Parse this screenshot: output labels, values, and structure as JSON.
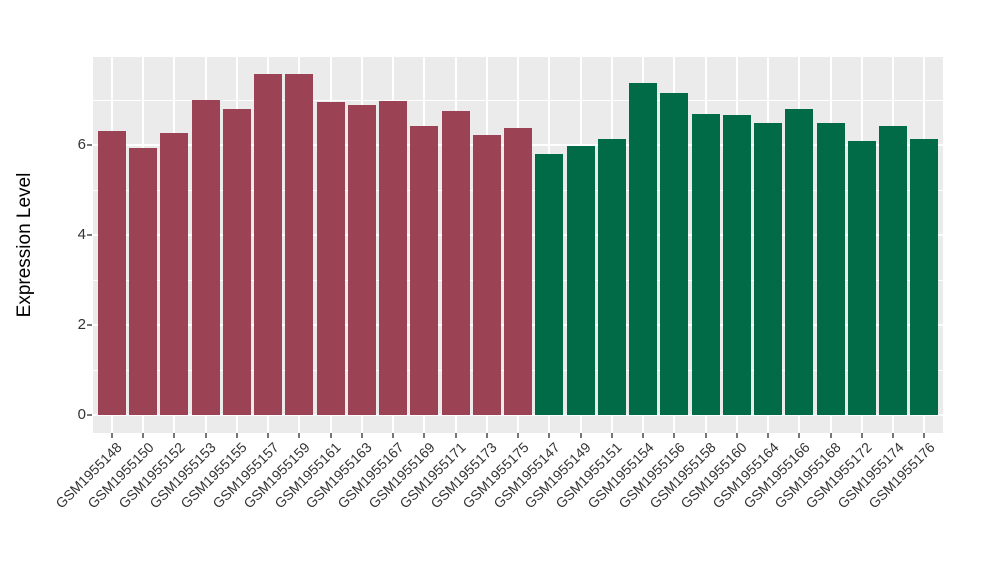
{
  "chart_data": {
    "type": "bar",
    "title": "",
    "xlabel": "",
    "ylabel": "Expression Level",
    "ylim": [
      0,
      7.96
    ],
    "yticks": [
      0,
      2,
      4,
      6
    ],
    "ytick_labels": [
      "0",
      "2",
      "4",
      "6"
    ],
    "minor_yticks": [
      1,
      3,
      5,
      7
    ],
    "grid": "major and minor white gridlines on gray panel",
    "legend_position": "none",
    "panel_background": "#EBEBEB",
    "gridline_color": "#FFFFFF",
    "axis_text_color": "#333333",
    "categories": [
      "GSM1955148",
      "GSM1955150",
      "GSM1955152",
      "GSM1955153",
      "GSM1955155",
      "GSM1955157",
      "GSM1955159",
      "GSM1955161",
      "GSM1955163",
      "GSM1955167",
      "GSM1955169",
      "GSM1955171",
      "GSM1955173",
      "GSM1955175",
      "GSM1955147",
      "GSM1955149",
      "GSM1955151",
      "GSM1955154",
      "GSM1955156",
      "GSM1955158",
      "GSM1955160",
      "GSM1955164",
      "GSM1955166",
      "GSM1955168",
      "GSM1955172",
      "GSM1955174",
      "GSM1955176"
    ],
    "values": [
      6.31,
      5.93,
      6.27,
      7.01,
      6.79,
      7.58,
      7.58,
      6.96,
      6.9,
      6.98,
      6.42,
      6.76,
      6.22,
      6.38,
      5.8,
      5.98,
      6.13,
      7.37,
      7.16,
      6.7,
      6.66,
      6.48,
      6.8,
      6.49,
      6.1,
      6.42,
      6.14
    ],
    "groups": [
      "red",
      "red",
      "red",
      "red",
      "red",
      "red",
      "red",
      "red",
      "red",
      "red",
      "red",
      "red",
      "red",
      "red",
      "green",
      "green",
      "green",
      "green",
      "green",
      "green",
      "green",
      "green",
      "green",
      "green",
      "green",
      "green",
      "green"
    ],
    "group_colors": {
      "red": "#9B4354",
      "green": "#016A46"
    }
  }
}
